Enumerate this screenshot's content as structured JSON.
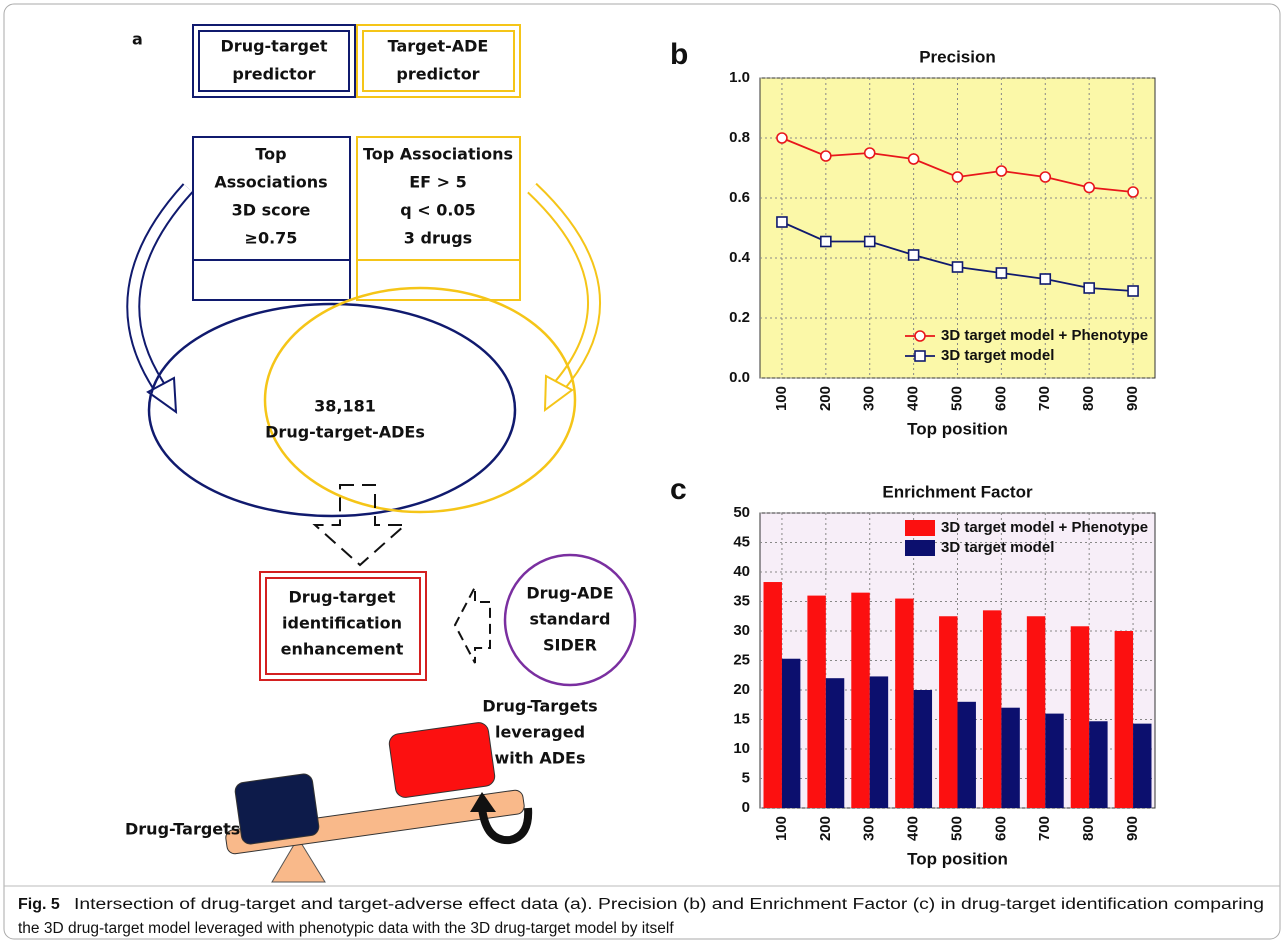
{
  "diagram": {
    "panel_label": "a",
    "predictors": [
      {
        "lines": [
          "Drug-target",
          "predictor"
        ]
      },
      {
        "lines": [
          "Target-ADE",
          "predictor"
        ]
      }
    ],
    "criteria": [
      {
        "lines": [
          "Top",
          "Associations",
          "3D score",
          "≥0.75"
        ]
      },
      {
        "lines": [
          "Top Associations",
          "EF > 5",
          "q < 0.05",
          "3 drugs"
        ]
      }
    ],
    "intersection": {
      "lines": [
        "38,181",
        "Drug-target-ADEs"
      ]
    },
    "enhancement": {
      "lines": [
        "Drug-target",
        "identification",
        "enhancement"
      ]
    },
    "standard": {
      "lines": [
        "Drug-ADE",
        "standard",
        "SIDER"
      ]
    },
    "leveraged": {
      "lines": [
        "Drug-Targets",
        "leveraged",
        "with ADEs"
      ]
    },
    "baseline_label": "Drug-Targets"
  },
  "chart_data": [
    {
      "type": "line",
      "panel_label": "b",
      "title": "Precision",
      "xlabel": "Top position",
      "categories": [
        "100",
        "200",
        "300",
        "400",
        "500",
        "600",
        "700",
        "800",
        "900"
      ],
      "series": [
        {
          "name": "3D target model + Phenotype",
          "color": "#e8161b",
          "marker": "circle",
          "values": [
            0.8,
            0.74,
            0.75,
            0.73,
            0.67,
            0.69,
            0.67,
            0.635,
            0.62
          ]
        },
        {
          "name": "3D target model",
          "color": "#101a6e",
          "marker": "square",
          "values": [
            0.52,
            0.455,
            0.455,
            0.41,
            0.37,
            0.35,
            0.33,
            0.3,
            0.29
          ]
        }
      ],
      "ylim": [
        0,
        1
      ],
      "yticks": [
        {
          "value": 0,
          "label": "0.0"
        },
        0.2,
        0.4,
        0.6,
        0.8,
        {
          "value": 1,
          "label": "1.0"
        }
      ],
      "grid": true,
      "background": "#fbf8a8",
      "legend": "lower-right"
    },
    {
      "type": "bar",
      "panel_label": "c",
      "title": "Enrichment Factor",
      "xlabel": "Top position",
      "categories": [
        "100",
        "200",
        "300",
        "400",
        "500",
        "600",
        "700",
        "800",
        "900"
      ],
      "series": [
        {
          "name": "3D target model + Phenotype",
          "color": "#fc1010",
          "values": [
            38.3,
            36,
            36.5,
            35.5,
            32.5,
            33.5,
            32.5,
            30.8,
            30
          ]
        },
        {
          "name": "3D target model",
          "color": "#0c0f6e",
          "values": [
            25.3,
            22,
            22.3,
            20,
            18,
            17,
            16,
            14.7,
            14.3
          ]
        }
      ],
      "ylim": [
        0,
        50
      ],
      "yticks": [
        0,
        5,
        10,
        15,
        20,
        25,
        30,
        35,
        40,
        45,
        50
      ],
      "grid": true,
      "background": "#f7eef8",
      "legend": "upper-right"
    }
  ],
  "caption": {
    "label": "Fig. 5",
    "lines": [
      "Intersection of drug-target and target-adverse effect data (a). Precision (b) and Enrichment Factor (c) in drug-target identification comparing",
      "the 3D drug-target model leveraged with phenotypic data with the 3D drug-target model by itself"
    ]
  }
}
